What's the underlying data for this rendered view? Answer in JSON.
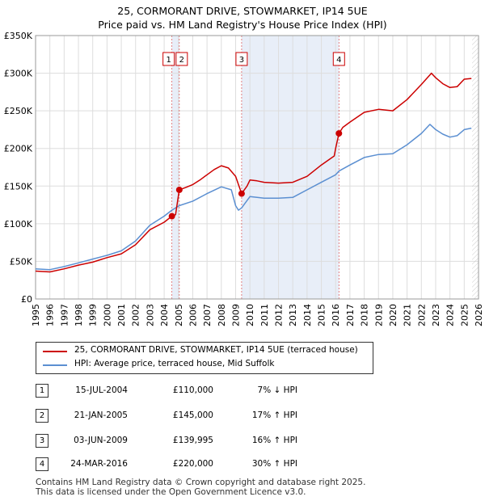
{
  "title_line1": "25, CORMORANT DRIVE, STOWMARKET, IP14 5UE",
  "title_line2": "Price paid vs. HM Land Registry's House Price Index (HPI)",
  "legend": {
    "property_label": "25, CORMORANT DRIVE, STOWMARKET, IP14 5UE (terraced house)",
    "hpi_label": "HPI: Average price, terraced house, Mid Suffolk"
  },
  "colors": {
    "property": "#cc0000",
    "hpi": "#5b8fd1",
    "shade": "#e8eef8",
    "grid": "#dddddd"
  },
  "transactions": [
    {
      "num": "1",
      "date": "15-JUL-2004",
      "price": "£110,000",
      "hpi": "7% ↓ HPI"
    },
    {
      "num": "2",
      "date": "21-JAN-2005",
      "price": "£145,000",
      "hpi": "17% ↑ HPI"
    },
    {
      "num": "3",
      "date": "03-JUN-2009",
      "price": "£139,995",
      "hpi": "16% ↑ HPI"
    },
    {
      "num": "4",
      "date": "24-MAR-2016",
      "price": "£220,000",
      "hpi": "30% ↑ HPI"
    }
  ],
  "footer": {
    "line1": "Contains HM Land Registry data © Crown copyright and database right 2025.",
    "line2": "This data is licensed under the Open Government Licence v3.0."
  },
  "chart_data": {
    "type": "line",
    "title": "25, CORMORANT DRIVE, STOWMARKET, IP14 5UE — Price paid vs. HM Land Registry's House Price Index (HPI)",
    "xlabel": "",
    "ylabel": "",
    "xlim": [
      1995,
      2026
    ],
    "ylim": [
      0,
      350000
    ],
    "x_ticks": [
      1995,
      1996,
      1997,
      1998,
      1999,
      2000,
      2001,
      2002,
      2003,
      2004,
      2005,
      2006,
      2007,
      2008,
      2009,
      2010,
      2011,
      2012,
      2013,
      2014,
      2015,
      2016,
      2017,
      2018,
      2019,
      2020,
      2021,
      2022,
      2023,
      2024,
      2025,
      2026
    ],
    "y_ticks": [
      0,
      50000,
      100000,
      150000,
      200000,
      250000,
      300000,
      350000
    ],
    "y_tick_labels": [
      "£0",
      "£50K",
      "£100K",
      "£150K",
      "£200K",
      "£250K",
      "£300K",
      "£350K"
    ],
    "shaded_spans": [
      [
        2004.54,
        2005.06
      ],
      [
        2009.42,
        2016.23
      ]
    ],
    "markers": [
      {
        "label": "1",
        "x": 2004.54,
        "y": 110000
      },
      {
        "label": "2",
        "x": 2005.06,
        "y": 145000
      },
      {
        "label": "3",
        "x": 2009.42,
        "y": 139995
      },
      {
        "label": "4",
        "x": 2016.23,
        "y": 220000
      }
    ],
    "series": [
      {
        "name": "25, CORMORANT DRIVE, STOWMARKET, IP14 5UE (terraced house)",
        "color": "#cc0000",
        "points": [
          [
            1995.0,
            37000
          ],
          [
            1996.0,
            36000
          ],
          [
            1997.0,
            40000
          ],
          [
            1998.0,
            45000
          ],
          [
            1999.0,
            49000
          ],
          [
            2000.0,
            55000
          ],
          [
            2001.0,
            60000
          ],
          [
            2002.0,
            72000
          ],
          [
            2003.0,
            92000
          ],
          [
            2004.0,
            102000
          ],
          [
            2004.54,
            110000
          ],
          [
            2004.8,
            112000
          ],
          [
            2005.06,
            145000
          ],
          [
            2005.5,
            148000
          ],
          [
            2006.0,
            152000
          ],
          [
            2006.5,
            158000
          ],
          [
            2007.0,
            165000
          ],
          [
            2007.5,
            172000
          ],
          [
            2008.0,
            177000
          ],
          [
            2008.5,
            174000
          ],
          [
            2009.0,
            163000
          ],
          [
            2009.42,
            139995
          ],
          [
            2009.8,
            150000
          ],
          [
            2010.0,
            158000
          ],
          [
            2010.5,
            157000
          ],
          [
            2011.0,
            155000
          ],
          [
            2012.0,
            154000
          ],
          [
            2013.0,
            155000
          ],
          [
            2014.0,
            163000
          ],
          [
            2015.0,
            178000
          ],
          [
            2015.9,
            190000
          ],
          [
            2016.0,
            200000
          ],
          [
            2016.23,
            220000
          ],
          [
            2016.5,
            228000
          ],
          [
            2017.0,
            235000
          ],
          [
            2018.0,
            248000
          ],
          [
            2019.0,
            252000
          ],
          [
            2020.0,
            250000
          ],
          [
            2021.0,
            265000
          ],
          [
            2022.0,
            285000
          ],
          [
            2022.7,
            300000
          ],
          [
            2023.0,
            294000
          ],
          [
            2023.5,
            286000
          ],
          [
            2024.0,
            281000
          ],
          [
            2024.5,
            282000
          ],
          [
            2025.0,
            292000
          ],
          [
            2025.5,
            293000
          ]
        ]
      },
      {
        "name": "HPI: Average price, terraced house, Mid Suffolk",
        "color": "#5b8fd1",
        "points": [
          [
            1995.0,
            40000
          ],
          [
            1996.0,
            39000
          ],
          [
            1997.0,
            43000
          ],
          [
            1998.0,
            48000
          ],
          [
            1999.0,
            53000
          ],
          [
            2000.0,
            58000
          ],
          [
            2001.0,
            64000
          ],
          [
            2002.0,
            77000
          ],
          [
            2003.0,
            98000
          ],
          [
            2004.0,
            110000
          ],
          [
            2004.54,
            118000
          ],
          [
            2005.06,
            124000
          ],
          [
            2006.0,
            130000
          ],
          [
            2007.0,
            140000
          ],
          [
            2008.0,
            149000
          ],
          [
            2008.7,
            145000
          ],
          [
            2009.0,
            124000
          ],
          [
            2009.2,
            118000
          ],
          [
            2009.42,
            121000
          ],
          [
            2010.0,
            136000
          ],
          [
            2011.0,
            134000
          ],
          [
            2012.0,
            134000
          ],
          [
            2013.0,
            135000
          ],
          [
            2014.0,
            145000
          ],
          [
            2015.0,
            155000
          ],
          [
            2016.0,
            165000
          ],
          [
            2016.23,
            170000
          ],
          [
            2017.0,
            178000
          ],
          [
            2018.0,
            188000
          ],
          [
            2019.0,
            192000
          ],
          [
            2020.0,
            193000
          ],
          [
            2021.0,
            205000
          ],
          [
            2022.0,
            220000
          ],
          [
            2022.6,
            232000
          ],
          [
            2023.0,
            225000
          ],
          [
            2023.5,
            219000
          ],
          [
            2024.0,
            215000
          ],
          [
            2024.5,
            217000
          ],
          [
            2025.0,
            225000
          ],
          [
            2025.5,
            227000
          ]
        ]
      }
    ]
  }
}
